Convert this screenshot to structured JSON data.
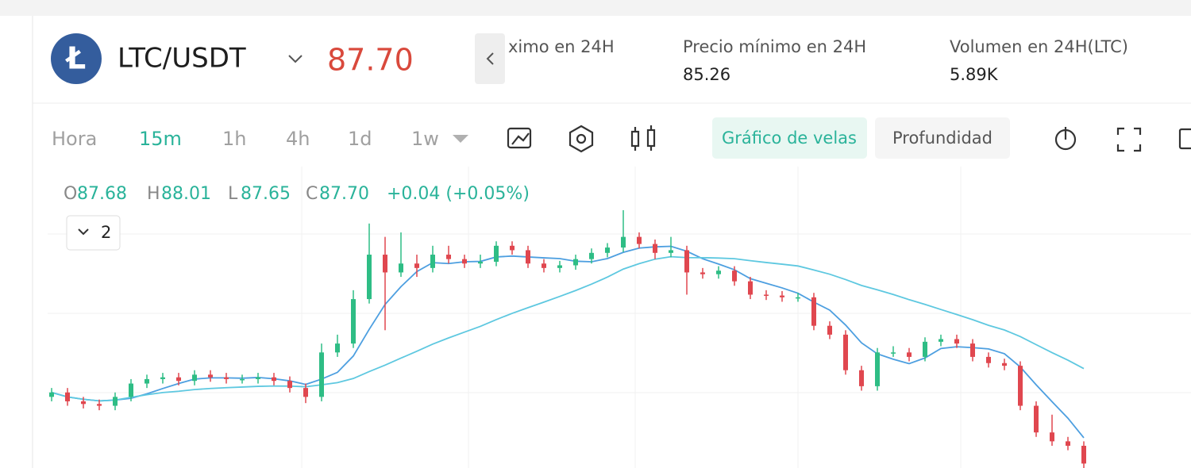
{
  "header": {
    "pair": "LTC/USDT",
    "price": "87.70",
    "stats": [
      {
        "label": "ximo en 24H"
      },
      {
        "label": "Precio mínimo en 24H",
        "value": "85.26"
      },
      {
        "label": "Volumen en 24H(LTC)",
        "value": "5.89K"
      }
    ]
  },
  "toolbar": {
    "intervals": [
      "Hora",
      "15m",
      "1h",
      "4h",
      "1d",
      "1w"
    ],
    "tabs": [
      "Gráfico de velas",
      "Profundidad"
    ]
  },
  "legend": {
    "o_label": "O",
    "o": "87.68",
    "h_label": "H",
    "h": "88.01",
    "l_label": "L",
    "l": "87.65",
    "c_label": "C",
    "c": "87.70",
    "change": "+0.04 (+0.05%)",
    "indicators": "2"
  },
  "chart_data": {
    "type": "candlestick",
    "colors": {
      "up": "#2ebd85",
      "down": "#e0474f"
    },
    "candles": [
      [
        86.25,
        86.35,
        86.2,
        86.3
      ],
      [
        86.3,
        86.35,
        86.15,
        86.2
      ],
      [
        86.2,
        86.25,
        86.12,
        86.17
      ],
      [
        86.17,
        86.22,
        86.1,
        86.15
      ],
      [
        86.15,
        86.3,
        86.1,
        86.25
      ],
      [
        86.25,
        86.45,
        86.2,
        86.4
      ],
      [
        86.4,
        86.5,
        86.35,
        86.45
      ],
      [
        86.45,
        86.52,
        86.4,
        86.47
      ],
      [
        86.47,
        86.52,
        86.38,
        86.43
      ],
      [
        86.43,
        86.55,
        86.38,
        86.5
      ],
      [
        86.5,
        86.55,
        86.42,
        86.47
      ],
      [
        86.47,
        86.52,
        86.4,
        86.45
      ],
      [
        86.45,
        86.5,
        86.4,
        86.45
      ],
      [
        86.45,
        86.52,
        86.4,
        86.47
      ],
      [
        86.47,
        86.52,
        86.38,
        86.43
      ],
      [
        86.43,
        86.48,
        86.3,
        86.35
      ],
      [
        86.35,
        86.4,
        86.18,
        86.25
      ],
      [
        86.25,
        86.85,
        86.2,
        86.75
      ],
      [
        86.75,
        86.95,
        86.7,
        86.85
      ],
      [
        86.85,
        87.45,
        86.8,
        87.35
      ],
      [
        87.35,
        88.2,
        87.3,
        87.85
      ],
      [
        87.85,
        88.05,
        87.0,
        87.65
      ],
      [
        87.65,
        88.1,
        87.6,
        87.75
      ],
      [
        87.75,
        87.85,
        87.6,
        87.7
      ],
      [
        87.7,
        87.95,
        87.65,
        87.85
      ],
      [
        87.85,
        87.95,
        87.75,
        87.8
      ],
      [
        87.8,
        87.85,
        87.7,
        87.75
      ],
      [
        87.75,
        87.85,
        87.7,
        87.77
      ],
      [
        87.77,
        88.0,
        87.72,
        87.95
      ],
      [
        87.95,
        88.0,
        87.85,
        87.9
      ],
      [
        87.9,
        87.95,
        87.7,
        87.75
      ],
      [
        87.75,
        87.8,
        87.65,
        87.7
      ],
      [
        87.7,
        87.78,
        87.65,
        87.73
      ],
      [
        87.73,
        87.85,
        87.68,
        87.8
      ],
      [
        87.8,
        87.92,
        87.75,
        87.87
      ],
      [
        87.87,
        87.98,
        87.82,
        87.93
      ],
      [
        87.93,
        88.35,
        87.88,
        88.05
      ],
      [
        88.05,
        88.1,
        87.92,
        87.97
      ],
      [
        87.97,
        88.02,
        87.8,
        87.87
      ],
      [
        87.87,
        88.05,
        87.82,
        87.9
      ],
      [
        87.9,
        87.95,
        87.4,
        87.65
      ],
      [
        87.65,
        87.7,
        87.58,
        87.63
      ],
      [
        87.63,
        87.72,
        87.58,
        87.67
      ],
      [
        87.67,
        87.72,
        87.5,
        87.55
      ],
      [
        87.55,
        87.6,
        87.35,
        87.4
      ],
      [
        87.4,
        87.45,
        87.34,
        87.39
      ],
      [
        87.39,
        87.44,
        87.32,
        87.37
      ],
      [
        87.37,
        87.42,
        87.32,
        87.37
      ],
      [
        87.37,
        87.42,
        87.0,
        87.05
      ],
      [
        87.05,
        87.1,
        86.9,
        86.95
      ],
      [
        86.95,
        87.0,
        86.5,
        86.55
      ],
      [
        86.55,
        86.6,
        86.32,
        86.37
      ],
      [
        86.37,
        86.8,
        86.32,
        86.75
      ],
      [
        86.75,
        86.82,
        86.7,
        86.75
      ],
      [
        86.75,
        86.8,
        86.65,
        86.7
      ],
      [
        86.7,
        86.92,
        86.65,
        86.87
      ],
      [
        86.87,
        86.95,
        86.82,
        86.9
      ],
      [
        86.9,
        86.95,
        86.8,
        86.85
      ],
      [
        86.85,
        86.9,
        86.65,
        86.7
      ],
      [
        86.7,
        86.75,
        86.58,
        86.63
      ],
      [
        86.63,
        86.68,
        86.55,
        86.6
      ],
      [
        86.6,
        86.65,
        86.1,
        86.15
      ],
      [
        86.15,
        86.2,
        85.8,
        85.85
      ],
      [
        85.85,
        86.05,
        85.7,
        85.75
      ],
      [
        85.75,
        85.8,
        85.65,
        85.7
      ],
      [
        85.7,
        85.75,
        85.45,
        85.5
      ]
    ]
  }
}
